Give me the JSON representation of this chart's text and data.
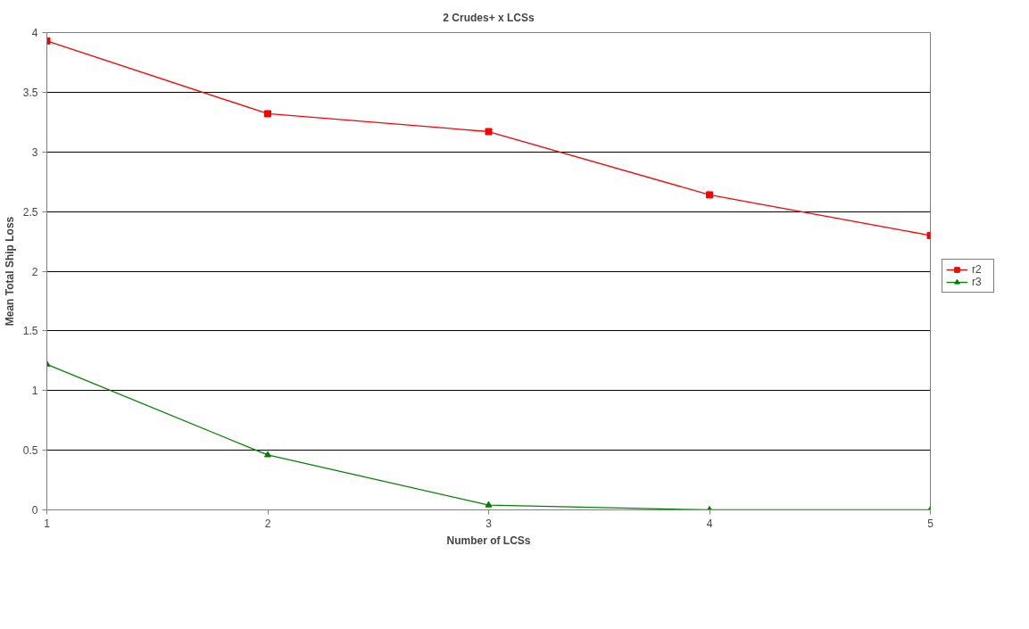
{
  "chart_data": {
    "type": "line",
    "title": "2 Crudes+ x LCSs",
    "xlabel": "Number of LCSs",
    "ylabel": "Mean Total Ship Loss",
    "x": [
      1,
      2,
      3,
      4,
      5
    ],
    "series": [
      {
        "name": "r2",
        "color": "#ff0000",
        "marker": "square",
        "values": [
          3.93,
          3.32,
          3.17,
          2.64,
          2.3
        ]
      },
      {
        "name": "r3",
        "color": "#008000",
        "marker": "triangle",
        "values": [
          1.22,
          0.46,
          0.04,
          0,
          0
        ]
      }
    ],
    "xlim": [
      1,
      5
    ],
    "xticks": [
      1,
      2,
      3,
      4,
      5
    ],
    "ylim": [
      0,
      4
    ],
    "yticks": [
      0,
      0.5,
      1,
      1.5,
      2,
      2.5,
      3,
      3.5,
      4
    ],
    "grid": "y",
    "legend": "right",
    "line_style": "solid"
  }
}
